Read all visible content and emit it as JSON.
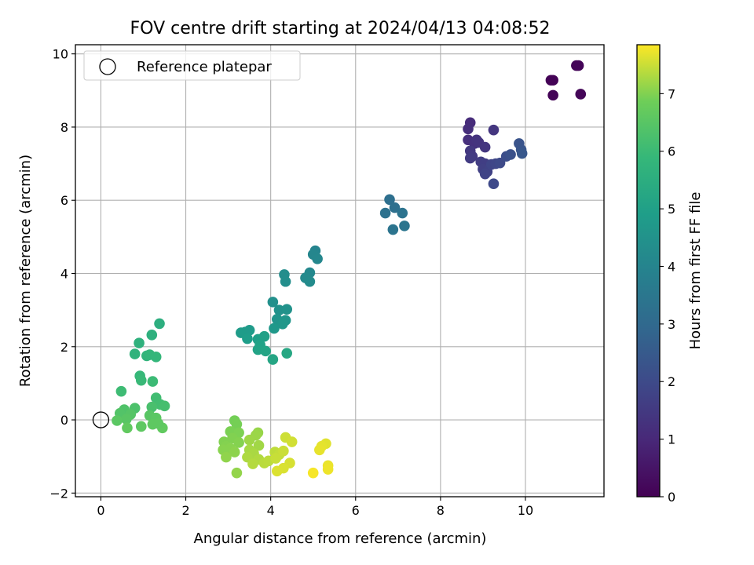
{
  "chart_data": {
    "type": "scatter",
    "title": "FOV centre drift starting at 2024/04/13 04:08:52",
    "xlabel": "Angular distance from reference (arcmin)",
    "ylabel": "Rotation from reference (arcmin)",
    "xlim": [
      -0.6,
      11.85
    ],
    "ylim": [
      -2.1,
      10.25
    ],
    "x_ticks": [
      0,
      2,
      4,
      6,
      8,
      10
    ],
    "y_ticks": [
      -2,
      0,
      2,
      4,
      6,
      8,
      10
    ],
    "grid": true,
    "legend": {
      "position": "top-left",
      "entries": [
        "Reference platepar"
      ]
    },
    "reference_point": {
      "x": 0,
      "y": 0,
      "marker": "open-circle"
    },
    "colorbar": {
      "label": "Hours from first FF file",
      "range": [
        0,
        7.85
      ],
      "ticks": [
        0,
        1,
        2,
        3,
        4,
        5,
        6,
        7
      ],
      "colormap": "viridis"
    },
    "points": [
      {
        "x": 10.6,
        "y": 9.28,
        "c": 0.05
      },
      {
        "x": 10.65,
        "y": 9.28,
        "c": 0.05
      },
      {
        "x": 10.65,
        "y": 8.87,
        "c": 0.08
      },
      {
        "x": 11.2,
        "y": 9.68,
        "c": 0.1
      },
      {
        "x": 11.25,
        "y": 9.68,
        "c": 0.1
      },
      {
        "x": 11.3,
        "y": 8.9,
        "c": 0.12
      },
      {
        "x": 8.7,
        "y": 8.12,
        "c": 1.1
      },
      {
        "x": 8.65,
        "y": 7.95,
        "c": 1.15
      },
      {
        "x": 8.65,
        "y": 7.65,
        "c": 1.2
      },
      {
        "x": 8.8,
        "y": 7.55,
        "c": 1.25
      },
      {
        "x": 8.85,
        "y": 7.65,
        "c": 1.3
      },
      {
        "x": 8.9,
        "y": 7.58,
        "c": 1.35
      },
      {
        "x": 9.05,
        "y": 7.45,
        "c": 1.4
      },
      {
        "x": 8.7,
        "y": 7.35,
        "c": 1.45
      },
      {
        "x": 8.75,
        "y": 7.2,
        "c": 1.5
      },
      {
        "x": 8.7,
        "y": 7.15,
        "c": 1.55
      },
      {
        "x": 8.95,
        "y": 7.05,
        "c": 1.6
      },
      {
        "x": 9.05,
        "y": 7.0,
        "c": 1.65
      },
      {
        "x": 9.0,
        "y": 6.85,
        "c": 1.7
      },
      {
        "x": 9.1,
        "y": 6.78,
        "c": 1.75
      },
      {
        "x": 9.05,
        "y": 6.72,
        "c": 1.8
      },
      {
        "x": 9.2,
        "y": 6.98,
        "c": 1.85
      },
      {
        "x": 9.3,
        "y": 7.0,
        "c": 1.9
      },
      {
        "x": 9.25,
        "y": 6.45,
        "c": 1.95
      },
      {
        "x": 9.4,
        "y": 7.02,
        "c": 2.0
      },
      {
        "x": 9.25,
        "y": 7.92,
        "c": 1.4
      },
      {
        "x": 9.55,
        "y": 7.2,
        "c": 2.1
      },
      {
        "x": 9.65,
        "y": 7.25,
        "c": 2.2
      },
      {
        "x": 9.85,
        "y": 7.55,
        "c": 2.3
      },
      {
        "x": 9.9,
        "y": 7.38,
        "c": 2.35
      },
      {
        "x": 9.92,
        "y": 7.28,
        "c": 2.4
      },
      {
        "x": 6.8,
        "y": 6.02,
        "c": 3.2
      },
      {
        "x": 6.92,
        "y": 5.8,
        "c": 3.25
      },
      {
        "x": 6.7,
        "y": 5.65,
        "c": 3.3
      },
      {
        "x": 7.1,
        "y": 5.65,
        "c": 3.35
      },
      {
        "x": 6.88,
        "y": 5.2,
        "c": 3.4
      },
      {
        "x": 7.15,
        "y": 5.3,
        "c": 3.45
      },
      {
        "x": 5.05,
        "y": 4.62,
        "c": 4.0
      },
      {
        "x": 5.0,
        "y": 4.52,
        "c": 4.05
      },
      {
        "x": 5.1,
        "y": 4.4,
        "c": 4.1
      },
      {
        "x": 4.92,
        "y": 4.02,
        "c": 4.15
      },
      {
        "x": 4.82,
        "y": 3.88,
        "c": 4.2
      },
      {
        "x": 4.92,
        "y": 3.78,
        "c": 4.25
      },
      {
        "x": 4.32,
        "y": 3.97,
        "c": 4.3
      },
      {
        "x": 4.35,
        "y": 3.78,
        "c": 4.35
      },
      {
        "x": 4.05,
        "y": 3.22,
        "c": 4.4
      },
      {
        "x": 4.2,
        "y": 3.0,
        "c": 4.45
      },
      {
        "x": 4.38,
        "y": 3.02,
        "c": 4.5
      },
      {
        "x": 4.15,
        "y": 2.75,
        "c": 4.55
      },
      {
        "x": 4.35,
        "y": 2.72,
        "c": 4.6
      },
      {
        "x": 4.28,
        "y": 2.62,
        "c": 4.65
      },
      {
        "x": 4.08,
        "y": 2.5,
        "c": 4.7
      },
      {
        "x": 3.4,
        "y": 2.4,
        "c": 4.75
      },
      {
        "x": 3.5,
        "y": 2.45,
        "c": 4.8
      },
      {
        "x": 3.3,
        "y": 2.38,
        "c": 4.85
      },
      {
        "x": 3.45,
        "y": 2.22,
        "c": 4.9
      },
      {
        "x": 3.7,
        "y": 2.2,
        "c": 4.95
      },
      {
        "x": 3.85,
        "y": 2.28,
        "c": 5.0
      },
      {
        "x": 3.75,
        "y": 2.05,
        "c": 5.05
      },
      {
        "x": 3.7,
        "y": 1.92,
        "c": 5.1
      },
      {
        "x": 3.88,
        "y": 1.88,
        "c": 5.15
      },
      {
        "x": 4.05,
        "y": 1.65,
        "c": 5.2
      },
      {
        "x": 4.38,
        "y": 1.82,
        "c": 5.25
      },
      {
        "x": 1.38,
        "y": 2.63,
        "c": 5.55
      },
      {
        "x": 1.2,
        "y": 2.32,
        "c": 5.6
      },
      {
        "x": 0.9,
        "y": 2.1,
        "c": 5.65
      },
      {
        "x": 0.8,
        "y": 1.8,
        "c": 5.7
      },
      {
        "x": 1.08,
        "y": 1.75,
        "c": 5.75
      },
      {
        "x": 1.15,
        "y": 1.78,
        "c": 5.8
      },
      {
        "x": 1.3,
        "y": 1.72,
        "c": 5.85
      },
      {
        "x": 0.92,
        "y": 1.2,
        "c": 5.9
      },
      {
        "x": 0.95,
        "y": 1.08,
        "c": 5.95
      },
      {
        "x": 1.22,
        "y": 1.05,
        "c": 6.0
      },
      {
        "x": 0.48,
        "y": 0.78,
        "c": 6.05
      },
      {
        "x": 1.3,
        "y": 0.6,
        "c": 6.1
      },
      {
        "x": 1.4,
        "y": 0.42,
        "c": 6.15
      },
      {
        "x": 1.5,
        "y": 0.38,
        "c": 6.2
      },
      {
        "x": 1.2,
        "y": 0.35,
        "c": 6.25
      },
      {
        "x": 0.8,
        "y": 0.32,
        "c": 6.3
      },
      {
        "x": 0.55,
        "y": 0.28,
        "c": 6.35
      },
      {
        "x": 0.45,
        "y": 0.18,
        "c": 6.4
      },
      {
        "x": 0.7,
        "y": 0.15,
        "c": 6.45
      },
      {
        "x": 1.15,
        "y": 0.12,
        "c": 6.5
      },
      {
        "x": 1.3,
        "y": 0.05,
        "c": 6.55
      },
      {
        "x": 0.6,
        "y": 0.02,
        "c": 6.5
      },
      {
        "x": 0.38,
        "y": -0.02,
        "c": 6.55
      },
      {
        "x": 1.22,
        "y": -0.12,
        "c": 6.6
      },
      {
        "x": 0.95,
        "y": -0.18,
        "c": 6.6
      },
      {
        "x": 0.62,
        "y": -0.22,
        "c": 6.65
      },
      {
        "x": 1.45,
        "y": -0.22,
        "c": 6.65
      },
      {
        "x": 1.35,
        "y": -0.1,
        "c": 6.6
      },
      {
        "x": 3.15,
        "y": -0.02,
        "c": 6.9
      },
      {
        "x": 3.2,
        "y": -0.12,
        "c": 6.92
      },
      {
        "x": 3.05,
        "y": -0.32,
        "c": 6.95
      },
      {
        "x": 3.25,
        "y": -0.35,
        "c": 6.97
      },
      {
        "x": 3.1,
        "y": -0.5,
        "c": 7.0
      },
      {
        "x": 2.9,
        "y": -0.6,
        "c": 7.0
      },
      {
        "x": 3.25,
        "y": -0.62,
        "c": 7.02
      },
      {
        "x": 2.95,
        "y": -0.72,
        "c": 7.02
      },
      {
        "x": 3.05,
        "y": -0.78,
        "c": 7.05
      },
      {
        "x": 2.88,
        "y": -0.82,
        "c": 7.05
      },
      {
        "x": 3.15,
        "y": -0.88,
        "c": 7.08
      },
      {
        "x": 2.95,
        "y": -1.02,
        "c": 7.1
      },
      {
        "x": 3.2,
        "y": -1.45,
        "c": 7.12
      },
      {
        "x": 3.7,
        "y": -0.35,
        "c": 7.15
      },
      {
        "x": 3.65,
        "y": -0.42,
        "c": 7.18
      },
      {
        "x": 3.5,
        "y": -0.55,
        "c": 7.2
      },
      {
        "x": 3.72,
        "y": -0.7,
        "c": 7.22
      },
      {
        "x": 3.5,
        "y": -0.82,
        "c": 7.25
      },
      {
        "x": 3.6,
        "y": -0.92,
        "c": 7.28
      },
      {
        "x": 3.45,
        "y": -1.02,
        "c": 7.3
      },
      {
        "x": 3.72,
        "y": -1.08,
        "c": 7.32
      },
      {
        "x": 3.58,
        "y": -1.2,
        "c": 7.35
      },
      {
        "x": 3.85,
        "y": -1.18,
        "c": 7.38
      },
      {
        "x": 3.95,
        "y": -1.12,
        "c": 7.4
      },
      {
        "x": 4.1,
        "y": -0.88,
        "c": 7.42
      },
      {
        "x": 4.2,
        "y": -0.95,
        "c": 7.45
      },
      {
        "x": 4.12,
        "y": -1.05,
        "c": 7.48
      },
      {
        "x": 4.3,
        "y": -0.85,
        "c": 7.5
      },
      {
        "x": 4.35,
        "y": -0.48,
        "c": 7.52
      },
      {
        "x": 4.5,
        "y": -0.6,
        "c": 7.55
      },
      {
        "x": 4.45,
        "y": -1.18,
        "c": 7.58
      },
      {
        "x": 4.3,
        "y": -1.32,
        "c": 7.6
      },
      {
        "x": 4.15,
        "y": -1.4,
        "c": 7.62
      },
      {
        "x": 5.3,
        "y": -0.65,
        "c": 7.65
      },
      {
        "x": 5.2,
        "y": -0.72,
        "c": 7.68
      },
      {
        "x": 5.15,
        "y": -0.82,
        "c": 7.7
      },
      {
        "x": 5.35,
        "y": -1.25,
        "c": 7.72
      },
      {
        "x": 5.35,
        "y": -1.35,
        "c": 7.75
      },
      {
        "x": 5.0,
        "y": -1.45,
        "c": 7.8
      }
    ]
  }
}
